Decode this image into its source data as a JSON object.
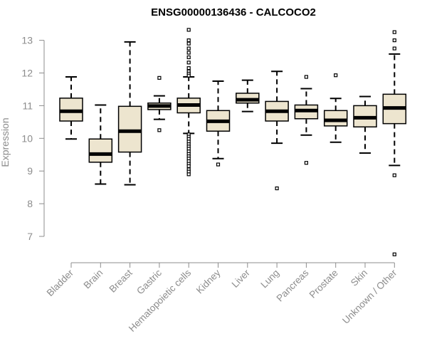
{
  "chart_data": {
    "type": "box",
    "title": "ENSG00000136436 - CALCOCO2",
    "xlabel": "",
    "ylabel": "Expression",
    "ylim": [
      6.3,
      13.3
    ],
    "yticks": [
      7,
      8,
      9,
      10,
      11,
      12,
      13
    ],
    "grid": false,
    "legend": "none",
    "box_fill": "#ede5cf",
    "box_stroke": "#000000",
    "categories": [
      "Bladder",
      "Brain",
      "Breast",
      "Gastric",
      "Hematopoietic cells",
      "Kidney",
      "Liver",
      "Lung",
      "Pancreas",
      "Prostate",
      "Skin",
      "Unknown / Other"
    ],
    "boxes": [
      {
        "category": "Bladder",
        "whisker_low": 9.98,
        "q1": 10.53,
        "median": 10.83,
        "q3": 11.23,
        "whisker_high": 11.88,
        "outliers": []
      },
      {
        "category": "Brain",
        "whisker_low": 8.6,
        "q1": 9.27,
        "median": 9.52,
        "q3": 9.98,
        "whisker_high": 11.02,
        "outliers": []
      },
      {
        "category": "Breast",
        "whisker_low": 8.58,
        "q1": 9.58,
        "median": 10.22,
        "q3": 10.98,
        "whisker_high": 12.95,
        "outliers": []
      },
      {
        "category": "Gastric",
        "whisker_low": 10.58,
        "q1": 10.88,
        "median": 10.99,
        "q3": 11.08,
        "whisker_high": 11.3,
        "outliers": [
          11.85,
          10.25
        ]
      },
      {
        "category": "Hematopoietic cells",
        "whisker_low": 10.15,
        "q1": 10.78,
        "median": 11.02,
        "q3": 11.23,
        "whisker_high": 11.88,
        "outliers": [
          13.32,
          13.0,
          12.9,
          12.75,
          12.62,
          12.48,
          12.32,
          12.15,
          12.05,
          11.98,
          11.92,
          10.12,
          10.05,
          9.98,
          9.9,
          9.82,
          9.75,
          9.68,
          9.6,
          9.52,
          9.45,
          9.38,
          9.3,
          9.22,
          9.15,
          9.05,
          8.98,
          8.9
        ]
      },
      {
        "category": "Kidney",
        "whisker_low": 9.38,
        "q1": 10.22,
        "median": 10.52,
        "q3": 10.85,
        "whisker_high": 11.75,
        "outliers": [
          9.2
        ]
      },
      {
        "category": "Liver",
        "whisker_low": 10.82,
        "q1": 11.08,
        "median": 11.18,
        "q3": 11.38,
        "whisker_high": 11.78,
        "outliers": []
      },
      {
        "category": "Lung",
        "whisker_low": 9.85,
        "q1": 10.53,
        "median": 10.83,
        "q3": 11.13,
        "whisker_high": 12.05,
        "outliers": [
          8.47
        ]
      },
      {
        "category": "Pancreas",
        "whisker_low": 10.1,
        "q1": 10.6,
        "median": 10.85,
        "q3": 11.02,
        "whisker_high": 11.52,
        "outliers": [
          11.88,
          9.25
        ]
      },
      {
        "category": "Prostate",
        "whisker_low": 9.88,
        "q1": 10.38,
        "median": 10.55,
        "q3": 10.85,
        "whisker_high": 11.22,
        "outliers": [
          11.93
        ]
      },
      {
        "category": "Skin",
        "whisker_low": 9.55,
        "q1": 10.35,
        "median": 10.63,
        "q3": 11.0,
        "whisker_high": 11.28,
        "outliers": []
      },
      {
        "category": "Unknown / Other",
        "whisker_low": 9.17,
        "q1": 10.45,
        "median": 10.93,
        "q3": 11.35,
        "whisker_high": 12.58,
        "outliers": [
          13.25,
          13.0,
          12.75,
          8.87,
          6.45
        ]
      }
    ]
  }
}
